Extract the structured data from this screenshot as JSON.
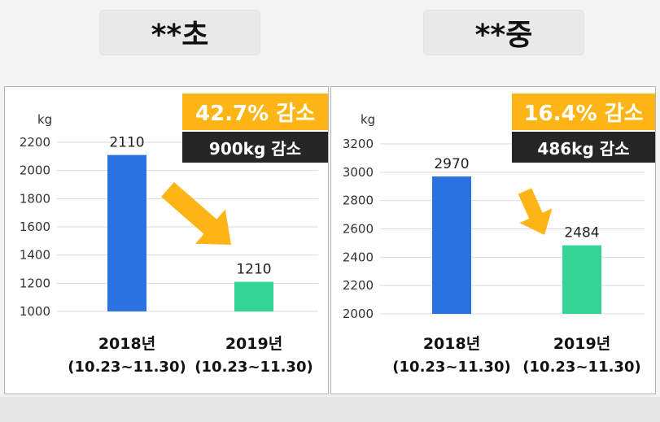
{
  "chart_data": [
    {
      "type": "bar",
      "title": "**초",
      "ylabel": "kg",
      "ylim": [
        1000,
        2200
      ],
      "yticks": [
        1000,
        1200,
        1400,
        1600,
        1800,
        2000,
        2200
      ],
      "categories": [
        "2018년",
        "2019년"
      ],
      "category_sublabels": [
        "(10.23~11.30)",
        "(10.23~11.30)"
      ],
      "values": [
        2110,
        1210
      ],
      "bar_colors": [
        "#2a72e0",
        "#35d596"
      ],
      "annotations": {
        "percent": "42.7% 감소",
        "amount": "900kg 감소"
      },
      "grid": true
    },
    {
      "type": "bar",
      "title": "**중",
      "ylabel": "kg",
      "ylim": [
        2000,
        3200
      ],
      "yticks": [
        2000,
        2200,
        2400,
        2600,
        2800,
        3000,
        3200
      ],
      "categories": [
        "2018년",
        "2019년"
      ],
      "category_sublabels": [
        "(10.23~11.30)",
        "(10.23~11.30)"
      ],
      "values": [
        2970,
        2484
      ],
      "bar_colors": [
        "#2a72e0",
        "#35d596"
      ],
      "annotations": {
        "percent": "16.4% 감소",
        "amount": "486kg 감소"
      },
      "grid": true
    }
  ],
  "colors": {
    "arrow": "#fdb515",
    "badge_pct": "#fdb515",
    "badge_amt": "#262626"
  }
}
